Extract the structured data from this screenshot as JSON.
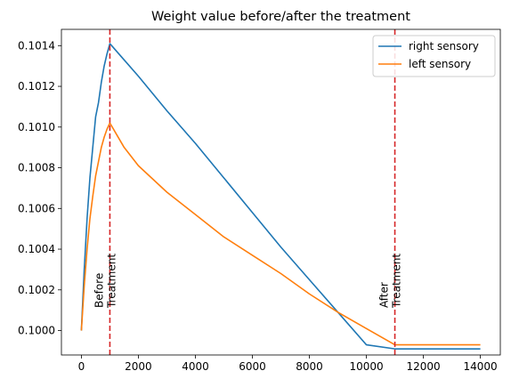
{
  "chart_data": {
    "type": "line",
    "title": "Weight value before/after the treatment",
    "xlabel": "",
    "ylabel": "",
    "xlim": [
      -700,
      14700
    ],
    "ylim": [
      0.09988,
      0.10148
    ],
    "x_ticks": [
      0,
      2000,
      4000,
      6000,
      8000,
      10000,
      12000,
      14000
    ],
    "x_tick_labels": [
      "0",
      "2000",
      "4000",
      "6000",
      "8000",
      "10000",
      "12000",
      "14000"
    ],
    "y_ticks": [
      0.1,
      0.1002,
      0.1004,
      0.1006,
      0.1008,
      0.101,
      0.1012,
      0.1014
    ],
    "y_tick_labels": [
      "0.1000",
      "0.1002",
      "0.1004",
      "0.1006",
      "0.1008",
      "0.1010",
      "0.1012",
      "0.1014"
    ],
    "grid": false,
    "legend_position": "top-right",
    "series": [
      {
        "name": "right sensory",
        "color": "#1f77b4",
        "x": [
          0,
          100,
          200,
          300,
          400,
          500,
          600,
          700,
          800,
          900,
          1000,
          1500,
          2000,
          3000,
          4000,
          5000,
          6000,
          7000,
          8000,
          9000,
          10000,
          11000,
          12000,
          13000,
          14000
        ],
        "y": [
          0.1,
          0.1003,
          0.10055,
          0.10075,
          0.1009,
          0.10105,
          0.10112,
          0.10122,
          0.1013,
          0.10136,
          0.10141,
          0.10133,
          0.10125,
          0.10108,
          0.10092,
          0.10075,
          0.10058,
          0.10041,
          0.10025,
          0.10009,
          0.09993,
          0.09991,
          0.09991,
          0.09991,
          0.09991
        ]
      },
      {
        "name": "left sensory",
        "color": "#ff7f0e",
        "x": [
          0,
          100,
          200,
          300,
          400,
          500,
          600,
          700,
          800,
          900,
          1000,
          1500,
          2000,
          3000,
          4000,
          5000,
          6000,
          7000,
          8000,
          9000,
          10000,
          11000,
          12000,
          13000,
          14000
        ],
        "y": [
          0.1,
          0.10022,
          0.1004,
          0.10055,
          0.10066,
          0.10076,
          0.10083,
          0.1009,
          0.10095,
          0.10099,
          0.10102,
          0.1009,
          0.10081,
          0.10068,
          0.10057,
          0.10046,
          0.10037,
          0.10028,
          0.10018,
          0.10009,
          0.10001,
          0.09993,
          0.09993,
          0.09993,
          0.09993
        ]
      }
    ],
    "vlines": [
      {
        "x": 1000,
        "color": "#d62728",
        "style": "dashed",
        "label_lines": [
          "Before",
          "Treatment"
        ]
      },
      {
        "x": 11000,
        "color": "#d62728",
        "style": "dashed",
        "label_lines": [
          "After",
          "Treatment"
        ]
      }
    ]
  }
}
